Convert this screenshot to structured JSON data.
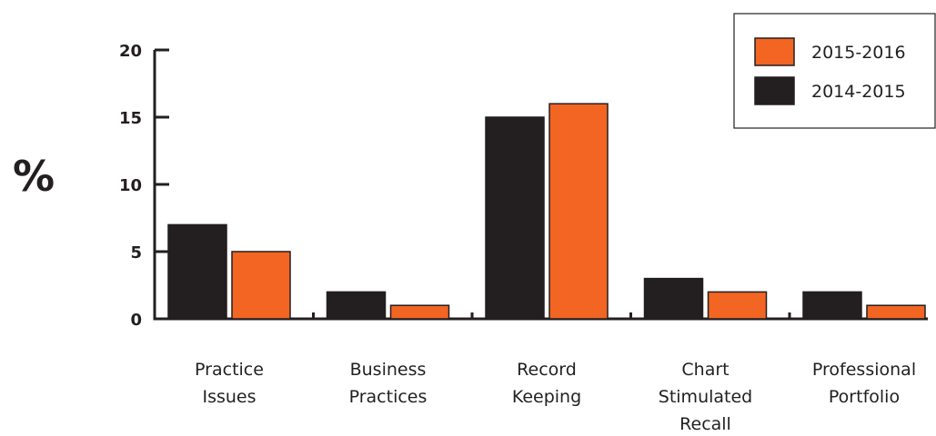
{
  "chart_data": {
    "type": "bar",
    "title": "",
    "xlabel": "",
    "ylabel": "%",
    "ylim": [
      0,
      20
    ],
    "yticks": [
      0,
      5,
      10,
      15,
      20
    ],
    "grid": false,
    "legend_position": "top-right",
    "categories": [
      [
        "Practice",
        "Issues"
      ],
      [
        "Business",
        "Practices"
      ],
      [
        "Record",
        "Keeping"
      ],
      [
        "Chart",
        "Stimulated",
        "Recall"
      ],
      [
        "Professional",
        "Portfolio"
      ]
    ],
    "series": [
      {
        "name": "2014-2015",
        "color": "#231f20",
        "values": [
          7,
          2,
          15,
          3,
          2
        ]
      },
      {
        "name": "2015-2016",
        "color": "#f26522",
        "values": [
          5,
          1,
          16,
          2,
          1
        ]
      }
    ],
    "legend_order": [
      "2015-2016",
      "2014-2015"
    ]
  }
}
